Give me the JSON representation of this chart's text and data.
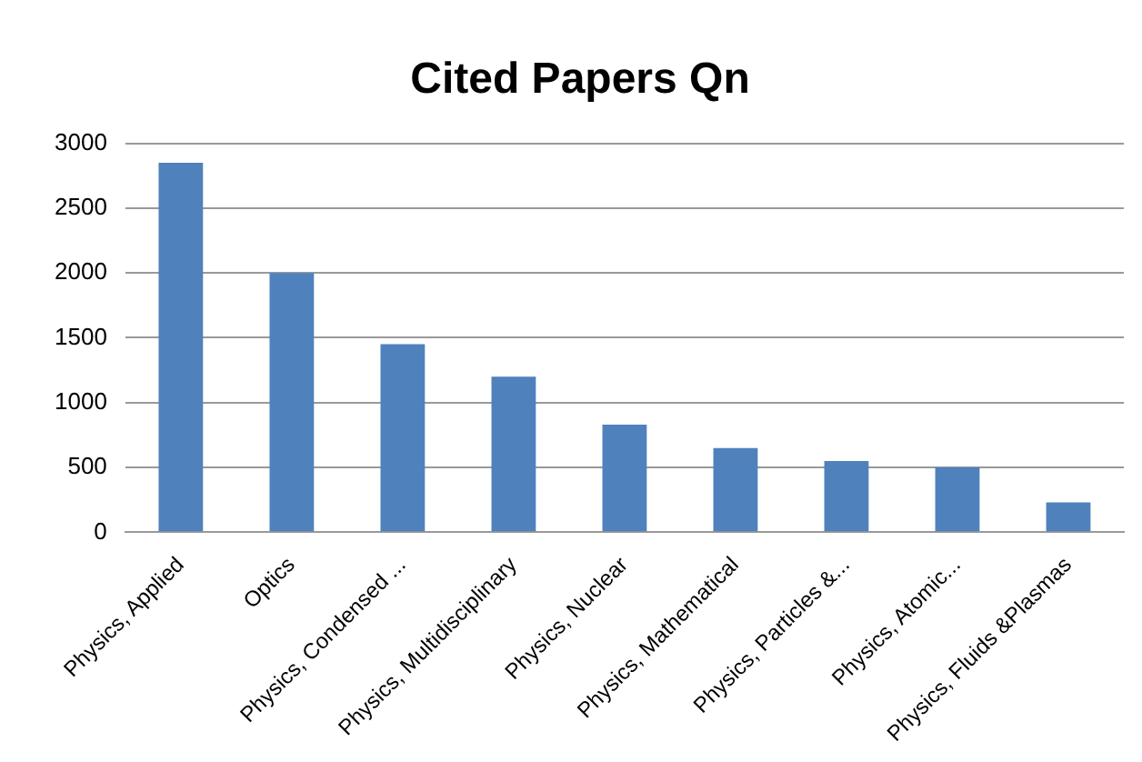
{
  "chart_data": {
    "type": "bar",
    "title": "Cited Papers Qn",
    "categories": [
      "Physics, Applied",
      "Optics",
      "Physics, Condensed ...",
      "Physics, Multidisciplinary",
      "Physics, Nuclear",
      "Physics, Mathematical",
      "Physics, Particles &...",
      "Physics, Atomic...",
      "Physics, Fluids &Plasmas"
    ],
    "values": [
      2850,
      2000,
      1450,
      1200,
      830,
      650,
      550,
      500,
      230
    ],
    "color": "#4f81bd",
    "ylim": [
      0,
      3000
    ],
    "yticks": [
      0,
      500,
      1000,
      1500,
      2000,
      2500,
      3000
    ],
    "grid": "y"
  }
}
